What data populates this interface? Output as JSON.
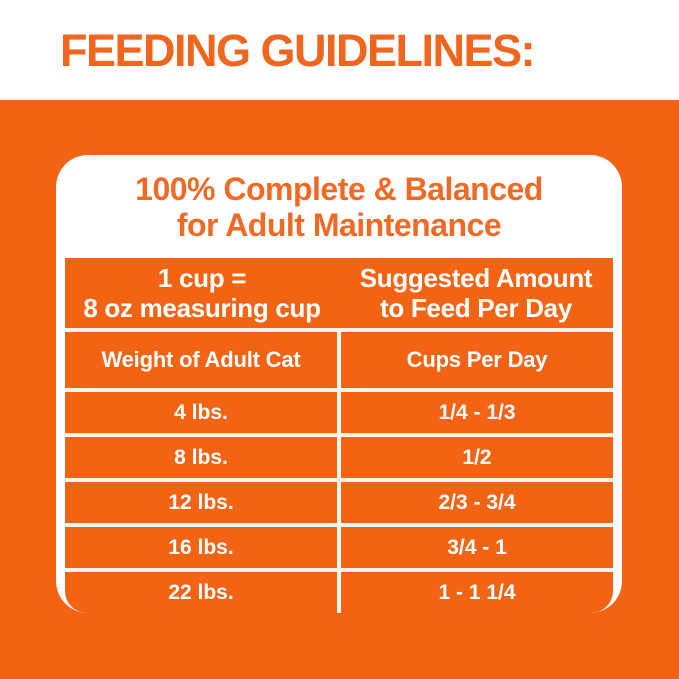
{
  "page": {
    "title": "FEEDING GUIDELINES:",
    "colors": {
      "brand_orange": "#F26414",
      "heading_text_orange": "#EF6A25",
      "table_text_white": "#FFFFFF",
      "card_background": "#FFFFFF"
    }
  },
  "card": {
    "heading_line1": "100% Complete & Balanced",
    "heading_line2": "for Adult Maintenance",
    "info_band": {
      "left_line1": "1 cup =",
      "left_line2": "8 oz measuring cup",
      "right_line1": "Suggested Amount",
      "right_line2": "to Feed Per Day"
    }
  },
  "chart_data": {
    "type": "table",
    "title": "FEEDING GUIDELINES:",
    "subtitle": "100% Complete & Balanced for Adult Maintenance",
    "note": "1 cup = 8 oz measuring cup",
    "value_note": "Suggested Amount to Feed Per Day",
    "columns": [
      "Weight of Adult Cat",
      "Cups Per Day"
    ],
    "rows": [
      [
        "4 lbs.",
        "1/4 - 1/3"
      ],
      [
        "8 lbs.",
        "1/2"
      ],
      [
        "12 lbs.",
        "2/3 - 3/4"
      ],
      [
        "16 lbs.",
        "3/4 - 1"
      ],
      [
        "22 lbs.",
        "1 - 1 1/4"
      ]
    ]
  }
}
